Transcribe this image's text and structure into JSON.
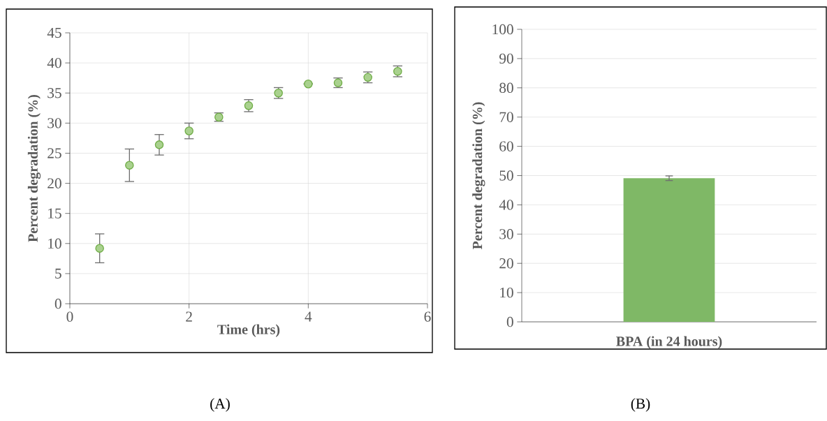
{
  "chart_data": [
    {
      "type": "scatter",
      "xlabel": "Time (hrs)",
      "ylabel": "Percent degradation (%)",
      "x": [
        0.5,
        1.0,
        1.5,
        2.0,
        2.5,
        3.0,
        3.5,
        4.0,
        4.5,
        5.0,
        5.5
      ],
      "values": [
        9.2,
        23.0,
        26.4,
        28.7,
        31.0,
        32.9,
        35.0,
        36.5,
        36.7,
        37.6,
        38.6
      ],
      "errors": [
        2.4,
        2.7,
        1.7,
        1.3,
        0.7,
        1.0,
        0.9,
        null,
        0.8,
        0.9,
        0.9
      ],
      "color": "#a9d18e",
      "marker": "circle",
      "xlim": [
        0,
        6
      ],
      "xticks": [
        0,
        2,
        4,
        6
      ],
      "ylim": [
        0,
        45
      ],
      "yticks": [
        0,
        5,
        10,
        15,
        20,
        25,
        30,
        35,
        40,
        45
      ],
      "grid": true,
      "annotations": [
        "(A)"
      ]
    },
    {
      "type": "bar",
      "xlabel": "BPA (in 24 hours)",
      "ylabel": "Percent degradation (%)",
      "categories": [
        null
      ],
      "values": [
        49.1
      ],
      "errors": [
        0.8
      ],
      "color": "#7fb866",
      "ylim": [
        0,
        100
      ],
      "yticks": [
        0,
        10,
        20,
        30,
        40,
        50,
        60,
        70,
        80,
        90,
        100
      ],
      "grid": "y",
      "annotations": [
        "(B)"
      ]
    }
  ]
}
